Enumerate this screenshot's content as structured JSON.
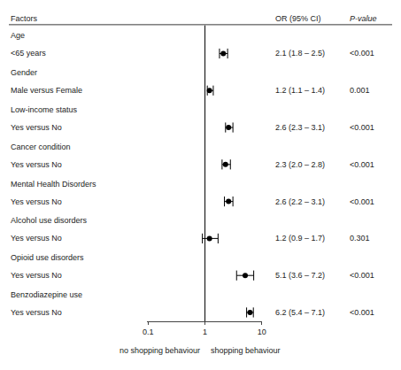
{
  "chart_data": {
    "type": "forest",
    "title_left": "Factors",
    "title_right_or": "OR (95% CI)",
    "title_right_p": "P-value",
    "rows": [
      {
        "group": "Age",
        "label": "<65 years",
        "or": 2.1,
        "ci_low": 1.8,
        "ci_high": 2.5,
        "or_text": "2.1 (1.8 – 2.5)",
        "pval": "<0.001"
      },
      {
        "group": "Gender",
        "label": "Male versus Female",
        "or": 1.2,
        "ci_low": 1.1,
        "ci_high": 1.4,
        "or_text": "1.2 (1.1 – 1.4)",
        "pval": "0.001"
      },
      {
        "group": "Low-income status",
        "label": "Yes versus No",
        "or": 2.6,
        "ci_low": 2.3,
        "ci_high": 3.1,
        "or_text": "2.6 (2.3 – 3.1)",
        "pval": "<0.001"
      },
      {
        "group": "Cancer condition",
        "label": "Yes versus No",
        "or": 2.3,
        "ci_low": 2.0,
        "ci_high": 2.8,
        "or_text": "2.3 (2.0 – 2.8)",
        "pval": "<0.001"
      },
      {
        "group": "Mental Health Disorders",
        "label": "Yes versus No",
        "or": 2.6,
        "ci_low": 2.2,
        "ci_high": 3.1,
        "or_text": "2.6 (2.2 – 3.1)",
        "pval": "<0.001"
      },
      {
        "group": "Alcohol use disorders",
        "label": "Yes versus No",
        "or": 1.2,
        "ci_low": 0.9,
        "ci_high": 1.7,
        "or_text": "1.2 (0.9 – 1.7)",
        "pval": "0.301"
      },
      {
        "group": "Opioid use disorders",
        "label": "Yes versus No",
        "or": 5.1,
        "ci_low": 3.6,
        "ci_high": 7.2,
        "or_text": "5.1 (3.6 – 7.2)",
        "pval": "<0.001"
      },
      {
        "group": "Benzodiazepine use",
        "label": "Yes versus No",
        "or": 6.2,
        "ci_low": 5.4,
        "ci_high": 7.1,
        "or_text": "6.2 (5.4 – 7.1)",
        "pval": "<0.001"
      }
    ],
    "log": "x",
    "xlim": [
      0.095,
      10
    ],
    "xticks": [
      0.1,
      1,
      10
    ],
    "xlabel_left": "no shopping behaviour",
    "xlabel_right": "shopping behaviour",
    "reference_line": 1,
    "color": "black",
    "grid": false
  }
}
